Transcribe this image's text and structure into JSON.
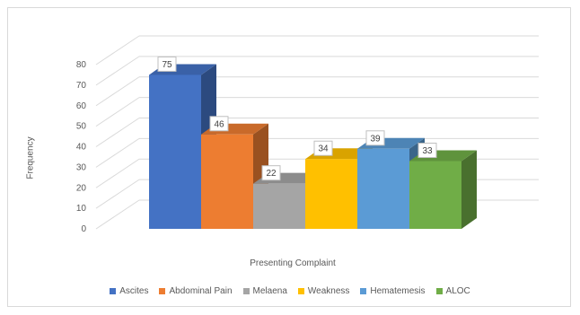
{
  "chart_data": {
    "type": "bar",
    "title": "",
    "xlabel": "Presenting Complaint",
    "ylabel": "Frequency",
    "categories": [
      "Ascites",
      "Abdominal Pain",
      "Melaena",
      "Weakness",
      "Hematemesis",
      "ALOC"
    ],
    "values": [
      75,
      46,
      22,
      34,
      39,
      33
    ],
    "colors": [
      "#4472c4",
      "#ed7d31",
      "#a5a5a5",
      "#ffc000",
      "#5b9bd5",
      "#70ad47"
    ],
    "ylim": [
      0,
      80
    ],
    "yticks": [
      0,
      10,
      20,
      30,
      40,
      50,
      60,
      70,
      80
    ],
    "grid": true,
    "style": "3d-column",
    "legend_position": "bottom"
  }
}
